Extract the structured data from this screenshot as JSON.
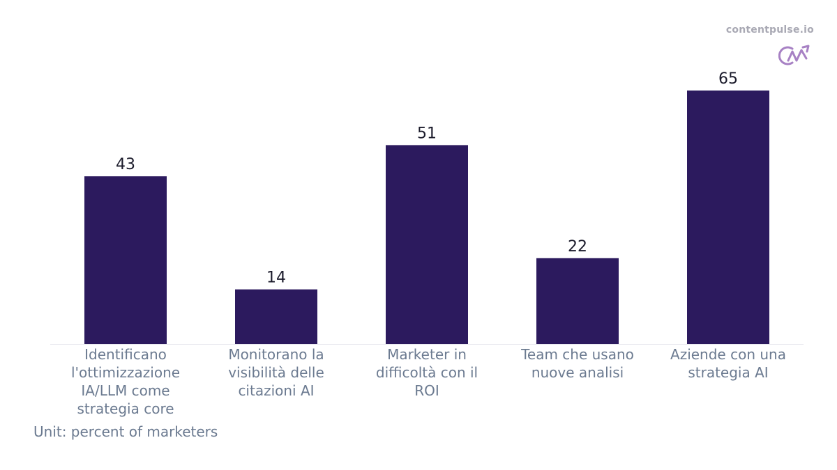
{
  "brand": {
    "text": "contentpulse.io",
    "logo_icon": "cp-logo-icon",
    "logo_color": "#a781c4"
  },
  "footer": {
    "unit": "Unit: percent of marketers"
  },
  "chart_data": {
    "type": "bar",
    "title": "",
    "xlabel": "",
    "ylabel": "",
    "categories": [
      [
        "Identificano",
        "l'ottimizzazione",
        "IA/LLM come",
        "strategia core"
      ],
      [
        "Monitorano la",
        "visibilità delle",
        "citazioni AI"
      ],
      [
        "Marketer in",
        "difficoltà con il",
        "ROI"
      ],
      [
        "Team che usano",
        "nuove analisi"
      ],
      [
        "Aziende con una",
        "strategia AI"
      ]
    ],
    "values": [
      43,
      14,
      51,
      22,
      65
    ],
    "ylim": [
      0,
      65
    ],
    "grid": false,
    "bar_color": "#2c1a5e"
  }
}
